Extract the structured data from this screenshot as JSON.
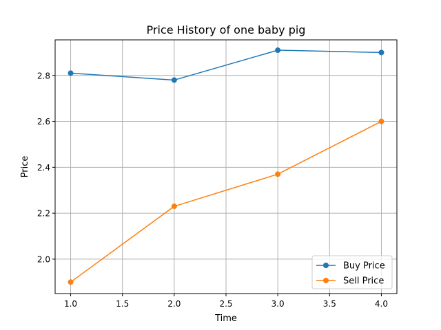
{
  "chart_data": {
    "type": "line",
    "title": "Price History of one baby pig",
    "xlabel": "Time",
    "ylabel": "Price",
    "x": [
      1.0,
      2.0,
      3.0,
      4.0
    ],
    "xlim": [
      0.85,
      4.15
    ],
    "ylim": [
      1.85,
      2.955
    ],
    "xticks": [
      "1.0",
      "1.5",
      "2.0",
      "2.5",
      "3.0",
      "3.5",
      "4.0"
    ],
    "yticks": [
      "2.0",
      "2.2",
      "2.4",
      "2.6",
      "2.8"
    ],
    "grid": true,
    "legend_position": "lower-right",
    "series": [
      {
        "name": "Buy Price",
        "color": "#1f77b4",
        "values": [
          2.81,
          2.78,
          2.91,
          2.9
        ]
      },
      {
        "name": "Sell Price",
        "color": "#ff7f0e",
        "values": [
          1.9,
          2.23,
          2.37,
          2.6
        ]
      }
    ]
  }
}
